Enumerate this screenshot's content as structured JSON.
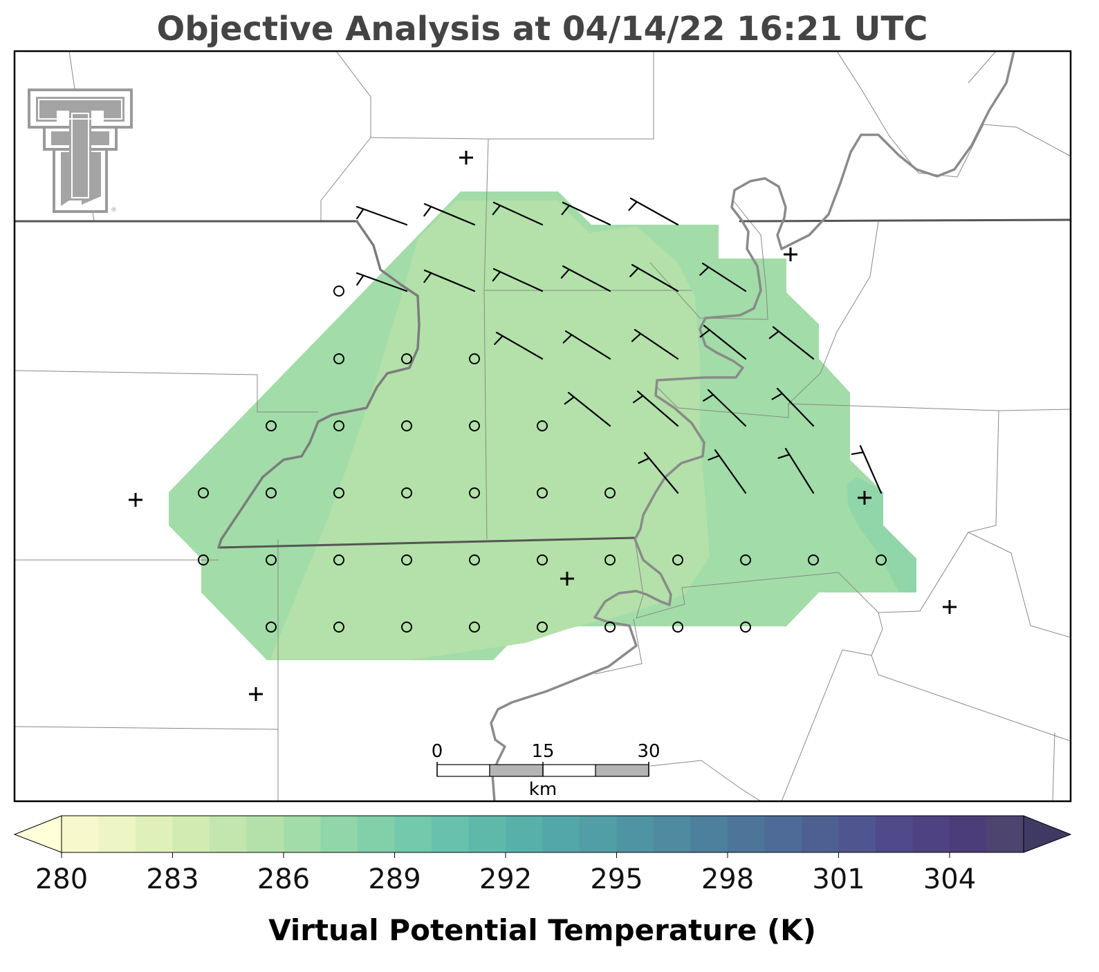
{
  "title": "Objective Analysis at 04/14/22 16:21 UTC",
  "logo": {
    "name": "texas-tech-double-t-logo",
    "registered_mark": "®",
    "color": "#9a9a9a"
  },
  "colorbar": {
    "label": "Virtual Potential Temperature (K)",
    "min": 280,
    "max": 306,
    "step": 1,
    "extend": "both",
    "tick_values": [
      280,
      283,
      286,
      289,
      292,
      295,
      298,
      301,
      304
    ],
    "tick_labels": [
      "280",
      "283",
      "286",
      "289",
      "292",
      "295",
      "298",
      "301",
      "304"
    ],
    "under_color": "#ffffd8",
    "over_color": "#3f3a63",
    "colors": [
      "#f7f9cc",
      "#ecf5c3",
      "#dff0ba",
      "#d1ebb3",
      "#c2e6ad",
      "#b3e1a9",
      "#a2dca8",
      "#91d6a9",
      "#81d0aa",
      "#72c9ab",
      "#68c1ac",
      "#5fb9ab",
      "#58b0aa",
      "#54a7a8",
      "#519ea6",
      "#4f94a3",
      "#4e8aa0",
      "#4d809d",
      "#4d7599",
      "#4d6b96",
      "#4e6092",
      "#4f568f",
      "#50498a",
      "#4f4282",
      "#4b3d79",
      "#4d4470"
    ]
  },
  "scale_bar": {
    "unit": "km",
    "labels": [
      "0",
      "15",
      "30"
    ]
  },
  "map": {
    "frame": "black-border",
    "analysis_field": "virtual-potential-temperature",
    "shading_levels_k": [
      285,
      286,
      287,
      288
    ],
    "stations": {
      "marker_symbol": "+",
      "count": 8
    },
    "grid": {
      "calm_symbol": "circle",
      "barb_color": "#000000",
      "circle_points": 45,
      "barb_points": 27
    }
  }
}
